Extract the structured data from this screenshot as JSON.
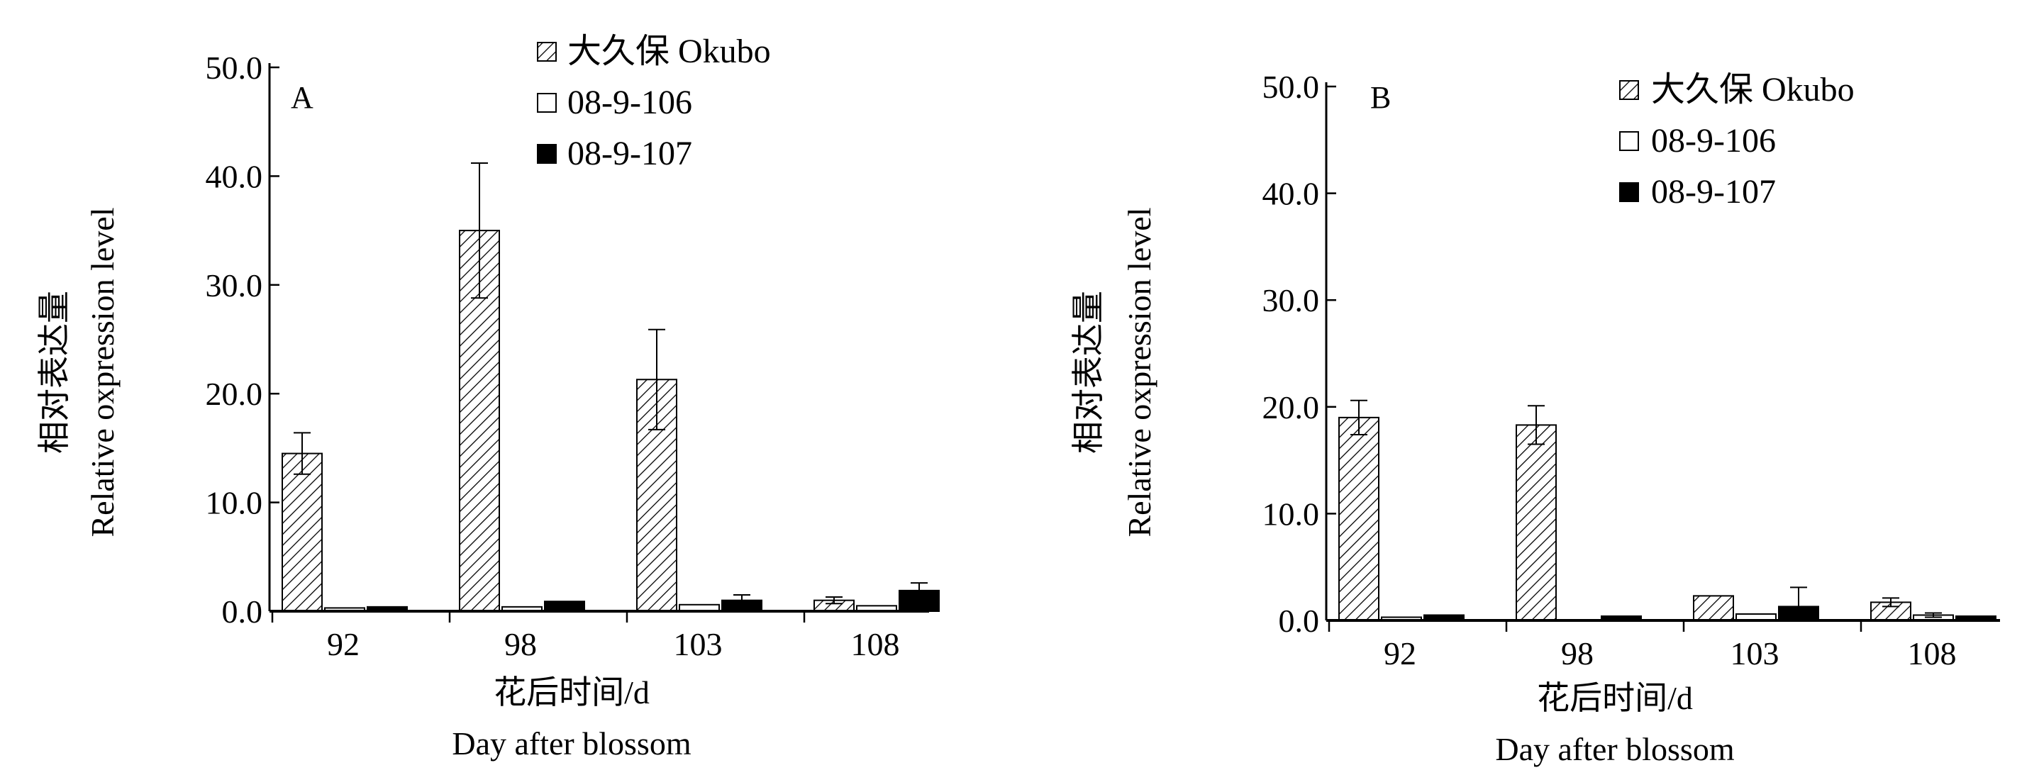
{
  "colors": {
    "okubo_fill": "#ffffff",
    "okubo_hatch": "#000000",
    "line106_fill": "#ffffff",
    "line107_fill": "#000000",
    "axis": "#000000"
  },
  "chart_data": [
    {
      "type": "bar",
      "panel_label": "A",
      "categories": [
        "92",
        "98",
        "103",
        "108"
      ],
      "series": [
        {
          "name": "大久保 Okubo",
          "pattern": "hatched",
          "values": [
            14.5,
            35.0,
            21.3,
            1.0
          ],
          "errors": [
            1.9,
            6.2,
            4.6,
            0.3
          ]
        },
        {
          "name": "08-9-106",
          "pattern": "white",
          "values": [
            0.3,
            0.4,
            0.6,
            0.5
          ],
          "errors": [
            0.0,
            0.0,
            0.0,
            0.0
          ]
        },
        {
          "name": "08-9-107",
          "pattern": "black",
          "values": [
            0.4,
            0.9,
            1.0,
            1.9
          ],
          "errors": [
            0.0,
            0.0,
            0.5,
            0.7
          ]
        }
      ],
      "yticks": [
        "0.0",
        "10.0",
        "20.0",
        "30.0",
        "40.0",
        "50.0"
      ],
      "ylim": [
        0,
        50
      ],
      "ylabel_zh": "相对表达量",
      "ylabel_en": "Relative oxpression level",
      "xlabel_zh": "花后时间/d",
      "xlabel_en": "Day after blossom",
      "legend_position": "top"
    },
    {
      "type": "bar",
      "panel_label": "B",
      "categories": [
        "92",
        "98",
        "103",
        "108"
      ],
      "series": [
        {
          "name": "大久保 Okubo",
          "pattern": "hatched",
          "values": [
            19.0,
            18.3,
            2.3,
            1.7
          ],
          "errors": [
            1.6,
            1.8,
            0.0,
            0.4
          ]
        },
        {
          "name": "08-9-106",
          "pattern": "white",
          "values": [
            0.3,
            0.0,
            0.6,
            0.5
          ],
          "errors": [
            0.0,
            0.0,
            0.0,
            0.2
          ]
        },
        {
          "name": "08-9-107",
          "pattern": "black",
          "values": [
            0.5,
            0.4,
            1.3,
            0.4
          ],
          "errors": [
            0.0,
            0.0,
            1.8,
            0.0
          ]
        }
      ],
      "yticks": [
        "0.0",
        "10.0",
        "20.0",
        "30.0",
        "40.0",
        "50.0"
      ],
      "ylim": [
        0,
        50
      ],
      "ylabel_zh": "相对表达量",
      "ylabel_en": "Relative oxpression level",
      "xlabel_zh": "花后时间/d",
      "xlabel_en": "Day after blossom",
      "legend_position": "top"
    }
  ]
}
